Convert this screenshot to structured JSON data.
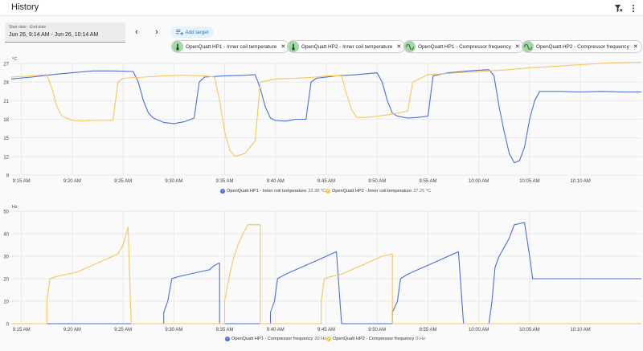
{
  "title": "History",
  "header_icons": [
    "filter-remove-icon",
    "more-vert-icon"
  ],
  "date_picker": {
    "label": "Start date - End date",
    "value": "Jun 26, 9:14 AM - Jun 26, 10:14 AM"
  },
  "nav": {
    "prev": "‹",
    "next": "›"
  },
  "add_target": {
    "label": "Add target",
    "icon": "add-target-icon"
  },
  "chips": [
    {
      "label": "OpenQuatt HP1 - Inner coil temperature",
      "icon": "thermometer-icon"
    },
    {
      "label": "OpenQuatt HP2 - Inner coil temperature",
      "icon": "thermometer-icon"
    },
    {
      "label": "OpenQuatt HP1 - Compressor frequency",
      "icon": "sine-wave-icon"
    },
    {
      "label": "OpenQuatt HP2 - Compressor frequency",
      "icon": "sine-wave-icon"
    }
  ],
  "colors": {
    "hp1": "#4a6fd8",
    "hp2": "#f7c55c",
    "grid": "#e6e6e6",
    "chip_icon_bg": "#a5d6a7"
  },
  "chart_data": [
    {
      "type": "line",
      "unit": "°C",
      "x_ticks": [
        "9:15 AM",
        "9:20 AM",
        "9:25 AM",
        "9:30 AM",
        "9:35 AM",
        "9:40 AM",
        "9:45 AM",
        "9:50 AM",
        "9:55 AM",
        "10:00 AM",
        "10:05 AM",
        "10:10 AM"
      ],
      "xlim": [
        -1,
        61
      ],
      "ylim": [
        9,
        27
      ],
      "y_ticks": [
        9,
        12,
        15,
        18,
        21,
        24,
        27
      ],
      "grid": true,
      "series": [
        {
          "name": "OpenQuatt HP1 - Inner coil temperature",
          "color": "#4a6fd8",
          "legend_value": "22.38 °C",
          "points": [
            [
              -1,
              24.5
            ],
            [
              1,
              24.8
            ],
            [
              3,
              25.2
            ],
            [
              5,
              25.5
            ],
            [
              7,
              25.8
            ],
            [
              9,
              25.8
            ],
            [
              11,
              25.7
            ],
            [
              11.5,
              24
            ],
            [
              12,
              21
            ],
            [
              12.5,
              19
            ],
            [
              13,
              18.2
            ],
            [
              14,
              17.5
            ],
            [
              15,
              17.3
            ],
            [
              16,
              17.6
            ],
            [
              17,
              18.2
            ],
            [
              17.5,
              24
            ],
            [
              18,
              24.8
            ],
            [
              20,
              25
            ],
            [
              22,
              25.1
            ],
            [
              23,
              25.2
            ],
            [
              23.5,
              23
            ],
            [
              24,
              20
            ],
            [
              24.5,
              18.2
            ],
            [
              25,
              17.8
            ],
            [
              26,
              17.7
            ],
            [
              27,
              18
            ],
            [
              28,
              18
            ],
            [
              28.5,
              24
            ],
            [
              29,
              24.6
            ],
            [
              31,
              25
            ],
            [
              33,
              25.2
            ],
            [
              35,
              25.5
            ],
            [
              35.5,
              24
            ],
            [
              36,
              21
            ],
            [
              36.5,
              19
            ],
            [
              37,
              18.5
            ],
            [
              38,
              18.2
            ],
            [
              39,
              18.3
            ],
            [
              40,
              18.5
            ],
            [
              40.5,
              25
            ],
            [
              42,
              25.5
            ],
            [
              44,
              25.8
            ],
            [
              46,
              26
            ],
            [
              46.5,
              25
            ],
            [
              47,
              20
            ],
            [
              47.5,
              16
            ],
            [
              48,
              12.5
            ],
            [
              48.5,
              11
            ],
            [
              49,
              11.3
            ],
            [
              49.5,
              13.5
            ],
            [
              50,
              18
            ],
            [
              50.5,
              21
            ],
            [
              51,
              22.5
            ],
            [
              53,
              22.5
            ],
            [
              55,
              22.4
            ],
            [
              57,
              22.5
            ],
            [
              59,
              22.4
            ],
            [
              61,
              22.4
            ]
          ]
        },
        {
          "name": "OpenQuatt HP2 - Inner coil temperature",
          "color": "#f7c55c",
          "legend_value": "27.25 °C",
          "points": [
            [
              -1,
              24.8
            ],
            [
              1,
              25
            ],
            [
              2.5,
              25.2
            ],
            [
              3,
              23
            ],
            [
              3.5,
              20
            ],
            [
              4,
              18.5
            ],
            [
              5,
              17.8
            ],
            [
              6,
              17.7
            ],
            [
              7,
              17.8
            ],
            [
              8,
              17.8
            ],
            [
              9,
              17.8
            ],
            [
              9.5,
              24
            ],
            [
              10,
              24.6
            ],
            [
              12,
              24.8
            ],
            [
              14,
              25
            ],
            [
              16,
              25.1
            ],
            [
              18,
              25
            ],
            [
              19,
              24.8
            ],
            [
              19.5,
              21
            ],
            [
              20,
              16
            ],
            [
              20.5,
              13
            ],
            [
              21,
              12
            ],
            [
              22,
              12.5
            ],
            [
              23,
              14.5
            ],
            [
              23.5,
              24
            ],
            [
              25,
              24.5
            ],
            [
              27,
              24.6
            ],
            [
              29,
              24.8
            ],
            [
              30,
              25
            ],
            [
              31.5,
              25
            ],
            [
              32,
              22
            ],
            [
              32.5,
              19.5
            ],
            [
              33,
              18.3
            ],
            [
              34,
              18.3
            ],
            [
              35,
              18.5
            ],
            [
              36,
              18.7
            ],
            [
              37,
              19
            ],
            [
              38,
              19.3
            ],
            [
              38.5,
              24
            ],
            [
              40,
              25.2
            ],
            [
              42,
              25.4
            ],
            [
              44,
              25.6
            ],
            [
              46,
              25.8
            ],
            [
              48,
              26
            ],
            [
              50,
              26.3
            ],
            [
              52,
              26.5
            ],
            [
              54,
              26.7
            ],
            [
              56,
              26.9
            ],
            [
              58,
              27.1
            ],
            [
              61,
              27.2
            ]
          ]
        }
      ]
    },
    {
      "type": "line",
      "unit": "Hz",
      "x_ticks": [
        "9:15 AM",
        "9:20 AM",
        "9:25 AM",
        "9:30 AM",
        "9:35 AM",
        "9:40 AM",
        "9:45 AM",
        "9:50 AM",
        "9:55 AM",
        "10:00 AM",
        "10:05 AM",
        "10:10 AM"
      ],
      "xlim": [
        -1,
        61
      ],
      "ylim": [
        0,
        50
      ],
      "y_ticks": [
        0,
        10,
        20,
        30,
        40,
        50
      ],
      "grid": true,
      "series": [
        {
          "name": "OpenQuatt HP1 - Compressor frequency",
          "color": "#4a6fd8",
          "legend_value": "20 Hz",
          "points": [
            [
              -1,
              0
            ],
            [
              14,
              0
            ],
            [
              14,
              5
            ],
            [
              14.4,
              10
            ],
            [
              14.8,
              20
            ],
            [
              15.5,
              21
            ],
            [
              16.5,
              22
            ],
            [
              17.5,
              23
            ],
            [
              18.5,
              24
            ],
            [
              19,
              26
            ],
            [
              19.5,
              27
            ],
            [
              19.5,
              0
            ],
            [
              24.5,
              0
            ],
            [
              24.5,
              5
            ],
            [
              24.9,
              10
            ],
            [
              25.2,
              20
            ],
            [
              26,
              22
            ],
            [
              27,
              24
            ],
            [
              28,
              26
            ],
            [
              29,
              28
            ],
            [
              30,
              30
            ],
            [
              31,
              32
            ],
            [
              31.5,
              0
            ],
            [
              36.5,
              0
            ],
            [
              36.5,
              5
            ],
            [
              37,
              10
            ],
            [
              37.3,
              20
            ],
            [
              38,
              22
            ],
            [
              39,
              24
            ],
            [
              40,
              26
            ],
            [
              41,
              28
            ],
            [
              42,
              30
            ],
            [
              43,
              32
            ],
            [
              43.5,
              0
            ],
            [
              46,
              0
            ],
            [
              46.3,
              10
            ],
            [
              46.6,
              25
            ],
            [
              47,
              30
            ],
            [
              47.5,
              34
            ],
            [
              48,
              38
            ],
            [
              48.5,
              44
            ],
            [
              49.5,
              45
            ],
            [
              50,
              30
            ],
            [
              50.3,
              20
            ],
            [
              52,
              20
            ],
            [
              55,
              20
            ],
            [
              58,
              20
            ],
            [
              61,
              20
            ]
          ]
        },
        {
          "name": "OpenQuatt HP2 - Compressor frequency",
          "color": "#f7c55c",
          "legend_value": "0 Hz",
          "points": [
            [
              -1,
              0
            ],
            [
              2.5,
              0
            ],
            [
              2.5,
              10
            ],
            [
              2.8,
              20
            ],
            [
              3.5,
              21
            ],
            [
              4.5,
              22
            ],
            [
              5.5,
              23
            ],
            [
              6.5,
              25
            ],
            [
              7.5,
              27
            ],
            [
              8.5,
              29
            ],
            [
              9.5,
              31
            ],
            [
              10,
              35
            ],
            [
              10.5,
              43
            ],
            [
              10.8,
              0
            ],
            [
              20,
              0
            ],
            [
              20,
              10
            ],
            [
              20.4,
              20
            ],
            [
              20.8,
              28
            ],
            [
              21.3,
              35
            ],
            [
              21.8,
              40
            ],
            [
              22.3,
              44
            ],
            [
              23.5,
              44
            ],
            [
              23.5,
              0
            ],
            [
              29.5,
              0
            ],
            [
              29.5,
              10
            ],
            [
              29.8,
              20
            ],
            [
              30.5,
              21
            ],
            [
              31.5,
              22
            ],
            [
              32.5,
              24
            ],
            [
              33.5,
              26
            ],
            [
              34.5,
              28
            ],
            [
              35.5,
              30
            ],
            [
              36.5,
              31
            ],
            [
              36.5,
              0
            ],
            [
              61,
              0
            ]
          ]
        }
      ]
    }
  ]
}
